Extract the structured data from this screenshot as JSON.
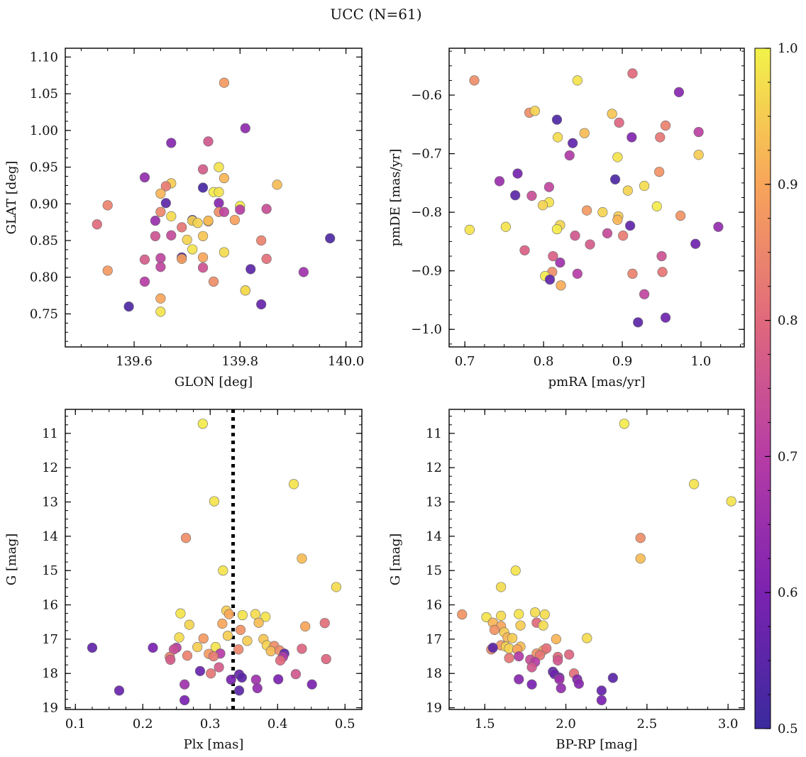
{
  "figure_title": "UCC (N=61)",
  "colorbar": {
    "range": [
      0.5,
      1.0
    ],
    "ticks": [
      0.5,
      0.6,
      0.7,
      0.8,
      0.9,
      1.0
    ],
    "tick_labels": [
      "0.5",
      "0.6",
      "0.7",
      "0.8",
      "0.9",
      "1.0"
    ],
    "colormap": "plasma",
    "stops": [
      "#3a2a9e",
      "#7b22b0",
      "#b63ca6",
      "#e0697c",
      "#f8a55a",
      "#f2f24a"
    ]
  },
  "chart_data": [
    {
      "type": "scatter",
      "title": "",
      "xlabel": "GLON [deg]",
      "ylabel": "GLAT [deg]",
      "xlim": [
        139.47,
        140.03
      ],
      "ylim": [
        0.705,
        1.112
      ],
      "xticks": [
        139.6,
        139.8,
        140.0
      ],
      "xtick_labels": [
        "139.6",
        "139.8",
        "140.0"
      ],
      "yticks": [
        0.75,
        0.8,
        0.85,
        0.9,
        0.95,
        1.0,
        1.05,
        1.1
      ],
      "ytick_labels": [
        "0.75",
        "0.80",
        "0.85",
        "0.90",
        "0.95",
        "1.00",
        "1.05",
        "1.10"
      ],
      "points": [
        [
          139.77,
          1.065,
          0.88
        ],
        [
          139.81,
          1.003,
          0.63
        ],
        [
          139.67,
          0.983,
          0.62
        ],
        [
          139.74,
          0.985,
          0.76
        ],
        [
          139.62,
          0.936,
          0.64
        ],
        [
          139.73,
          0.947,
          0.77
        ],
        [
          139.76,
          0.95,
          0.98
        ],
        [
          139.77,
          0.935,
          0.92
        ],
        [
          139.67,
          0.928,
          0.95
        ],
        [
          139.66,
          0.924,
          0.83
        ],
        [
          139.65,
          0.914,
          0.92
        ],
        [
          139.73,
          0.922,
          0.52
        ],
        [
          139.75,
          0.916,
          0.99
        ],
        [
          139.76,
          0.916,
          0.98
        ],
        [
          139.87,
          0.926,
          0.93
        ],
        [
          139.66,
          0.901,
          0.55
        ],
        [
          139.76,
          0.901,
          0.62
        ],
        [
          139.8,
          0.897,
          0.99
        ],
        [
          139.55,
          0.898,
          0.84
        ],
        [
          139.8,
          0.892,
          0.7
        ],
        [
          139.65,
          0.889,
          0.85
        ],
        [
          139.76,
          0.889,
          0.86
        ],
        [
          139.67,
          0.883,
          0.97
        ],
        [
          139.77,
          0.889,
          0.72
        ],
        [
          139.85,
          0.893,
          0.74
        ],
        [
          139.79,
          0.878,
          0.89
        ],
        [
          139.71,
          0.878,
          0.57
        ],
        [
          139.71,
          0.877,
          0.96
        ],
        [
          139.74,
          0.876,
          0.9
        ],
        [
          139.72,
          0.874,
          0.96
        ],
        [
          139.74,
          0.877,
          0.93
        ],
        [
          139.64,
          0.877,
          0.65
        ],
        [
          139.53,
          0.872,
          0.8
        ],
        [
          139.69,
          0.868,
          0.82
        ],
        [
          139.64,
          0.856,
          0.75
        ],
        [
          139.67,
          0.857,
          0.73
        ],
        [
          139.73,
          0.856,
          0.94
        ],
        [
          139.7,
          0.851,
          0.96
        ],
        [
          139.84,
          0.85,
          0.84
        ],
        [
          139.97,
          0.853,
          0.53
        ],
        [
          139.71,
          0.838,
          0.98
        ],
        [
          139.77,
          0.834,
          0.97
        ],
        [
          139.65,
          0.826,
          0.72
        ],
        [
          139.69,
          0.827,
          0.54
        ],
        [
          139.73,
          0.827,
          0.9
        ],
        [
          139.69,
          0.825,
          0.89
        ],
        [
          139.62,
          0.824,
          0.77
        ],
        [
          139.85,
          0.825,
          0.81
        ],
        [
          139.65,
          0.814,
          0.72
        ],
        [
          139.73,
          0.813,
          0.75
        ],
        [
          139.82,
          0.811,
          0.55
        ],
        [
          139.55,
          0.809,
          0.88
        ],
        [
          139.92,
          0.807,
          0.66
        ],
        [
          139.62,
          0.794,
          0.7
        ],
        [
          139.75,
          0.794,
          0.86
        ],
        [
          139.81,
          0.782,
          0.92
        ],
        [
          139.81,
          0.782,
          0.97
        ],
        [
          139.65,
          0.771,
          0.9
        ],
        [
          139.84,
          0.763,
          0.57
        ],
        [
          139.59,
          0.76,
          0.53
        ],
        [
          139.65,
          0.753,
          0.98
        ]
      ]
    },
    {
      "type": "scatter",
      "title": "",
      "xlabel": "pmRA [mas/yr]",
      "ylabel": "pmDE [mas/yr]",
      "xlim": [
        0.68,
        1.055
      ],
      "ylim": [
        -1.03,
        -0.52
      ],
      "xticks": [
        0.7,
        0.8,
        0.9,
        1.0
      ],
      "xtick_labels": [
        "0.7",
        "0.8",
        "0.9",
        "1.0"
      ],
      "yticks": [
        -1.0,
        -0.9,
        -0.8,
        -0.7,
        -0.6
      ],
      "ytick_labels": [
        "−1.0",
        "−0.9",
        "−0.8",
        "−0.7",
        "−0.6"
      ],
      "points": [
        [
          0.712,
          -0.575,
          0.86
        ],
        [
          0.843,
          -0.575,
          0.98
        ],
        [
          0.913,
          -0.563,
          0.8
        ],
        [
          0.972,
          -0.595,
          0.62
        ],
        [
          0.782,
          -0.63,
          0.86
        ],
        [
          0.789,
          -0.627,
          0.96
        ],
        [
          0.887,
          -0.632,
          0.94
        ],
        [
          0.817,
          -0.642,
          0.53
        ],
        [
          0.896,
          -0.647,
          0.79
        ],
        [
          0.955,
          -0.652,
          0.84
        ],
        [
          0.818,
          -0.672,
          0.97
        ],
        [
          0.852,
          -0.665,
          0.93
        ],
        [
          0.912,
          -0.672,
          0.61
        ],
        [
          0.948,
          -0.672,
          0.82
        ],
        [
          0.997,
          -0.663,
          0.71
        ],
        [
          0.837,
          -0.682,
          0.56
        ],
        [
          0.833,
          -0.703,
          0.69
        ],
        [
          0.894,
          -0.706,
          0.98
        ],
        [
          0.997,
          -0.702,
          0.95
        ],
        [
          0.767,
          -0.734,
          0.59
        ],
        [
          0.947,
          -0.731,
          0.87
        ],
        [
          0.744,
          -0.747,
          0.65
        ],
        [
          0.891,
          -0.744,
          0.53
        ],
        [
          0.928,
          -0.755,
          0.97
        ],
        [
          0.807,
          -0.757,
          0.72
        ],
        [
          0.907,
          -0.763,
          0.96
        ],
        [
          0.764,
          -0.771,
          0.55
        ],
        [
          0.785,
          -0.772,
          0.74
        ],
        [
          0.807,
          -0.783,
          0.98
        ],
        [
          0.799,
          -0.788,
          0.96
        ],
        [
          0.944,
          -0.79,
          0.99
        ],
        [
          0.855,
          -0.797,
          0.88
        ],
        [
          0.875,
          -0.8,
          0.96
        ],
        [
          0.895,
          -0.807,
          0.95
        ],
        [
          0.974,
          -0.806,
          0.87
        ],
        [
          0.894,
          -0.813,
          0.92
        ],
        [
          0.821,
          -0.822,
          0.96
        ],
        [
          0.91,
          -0.823,
          0.56
        ],
        [
          0.817,
          -0.829,
          0.99
        ],
        [
          0.752,
          -0.825,
          0.98
        ],
        [
          1.022,
          -0.825,
          0.64
        ],
        [
          0.706,
          -0.83,
          0.98
        ],
        [
          0.84,
          -0.84,
          0.76
        ],
        [
          0.881,
          -0.836,
          0.73
        ],
        [
          0.901,
          -0.84,
          0.83
        ],
        [
          0.859,
          -0.855,
          0.77
        ],
        [
          0.993,
          -0.854,
          0.58
        ],
        [
          0.776,
          -0.865,
          0.78
        ],
        [
          0.812,
          -0.875,
          0.78
        ],
        [
          0.821,
          -0.886,
          0.66
        ],
        [
          0.95,
          -0.875,
          0.75
        ],
        [
          0.811,
          -0.902,
          0.86
        ],
        [
          0.951,
          -0.902,
          0.82
        ],
        [
          0.913,
          -0.905,
          0.84
        ],
        [
          0.843,
          -0.905,
          0.7
        ],
        [
          0.802,
          -0.909,
          0.99
        ],
        [
          0.808,
          -0.915,
          0.56
        ],
        [
          0.822,
          -0.925,
          0.91
        ],
        [
          0.928,
          -0.94,
          0.72
        ],
        [
          0.955,
          -0.98,
          0.58
        ],
        [
          0.92,
          -0.988,
          0.55
        ]
      ]
    },
    {
      "type": "scatter",
      "title": "",
      "xlabel": "Plx [mas]",
      "ylabel": "G [mag]",
      "xlim": [
        0.085,
        0.525
      ],
      "ylim": [
        19.05,
        10.3
      ],
      "xticks": [
        0.1,
        0.2,
        0.3,
        0.4,
        0.5
      ],
      "xtick_labels": [
        "0.1",
        "0.2",
        "0.3",
        "0.4",
        "0.5"
      ],
      "yticks": [
        11,
        12,
        13,
        14,
        15,
        16,
        17,
        18,
        19
      ],
      "ytick_labels": [
        "11",
        "12",
        "13",
        "14",
        "15",
        "16",
        "17",
        "18",
        "19"
      ],
      "vline": 0.334,
      "points": [
        [
          0.289,
          10.72,
          0.99
        ],
        [
          0.424,
          12.48,
          0.98
        ],
        [
          0.306,
          12.98,
          0.98
        ],
        [
          0.264,
          14.05,
          0.86
        ],
        [
          0.436,
          14.65,
          0.93
        ],
        [
          0.319,
          15.0,
          0.98
        ],
        [
          0.487,
          15.48,
          0.97
        ],
        [
          0.256,
          16.25,
          0.98
        ],
        [
          0.324,
          16.17,
          0.95
        ],
        [
          0.328,
          16.27,
          0.9
        ],
        [
          0.348,
          16.3,
          0.98
        ],
        [
          0.367,
          16.27,
          0.97
        ],
        [
          0.382,
          16.35,
          0.98
        ],
        [
          0.47,
          16.53,
          0.81
        ],
        [
          0.372,
          16.52,
          0.93
        ],
        [
          0.269,
          16.58,
          0.96
        ],
        [
          0.318,
          16.55,
          0.9
        ],
        [
          0.441,
          16.63,
          0.9
        ],
        [
          0.345,
          16.73,
          0.87
        ],
        [
          0.326,
          16.9,
          0.95
        ],
        [
          0.379,
          17.0,
          0.94
        ],
        [
          0.254,
          16.95,
          0.97
        ],
        [
          0.29,
          16.98,
          0.88
        ],
        [
          0.355,
          17.05,
          0.95
        ],
        [
          0.384,
          17.18,
          0.96
        ],
        [
          0.395,
          17.2,
          0.86
        ],
        [
          0.308,
          17.23,
          0.98
        ],
        [
          0.281,
          17.23,
          0.95
        ],
        [
          0.215,
          17.25,
          0.6
        ],
        [
          0.125,
          17.25,
          0.56
        ],
        [
          0.25,
          17.25,
          0.7
        ],
        [
          0.246,
          17.3,
          0.74
        ],
        [
          0.342,
          17.3,
          0.85
        ],
        [
          0.39,
          17.35,
          0.93
        ],
        [
          0.403,
          17.33,
          0.86
        ],
        [
          0.436,
          17.28,
          0.79
        ],
        [
          0.298,
          17.43,
          0.88
        ],
        [
          0.315,
          17.42,
          0.7
        ],
        [
          0.305,
          17.5,
          0.83
        ],
        [
          0.266,
          17.48,
          0.84
        ],
        [
          0.24,
          17.52,
          0.84
        ],
        [
          0.41,
          17.42,
          0.56
        ],
        [
          0.408,
          17.52,
          0.7
        ],
        [
          0.241,
          17.6,
          0.77
        ],
        [
          0.404,
          17.62,
          0.8
        ],
        [
          0.472,
          17.58,
          0.79
        ],
        [
          0.313,
          17.82,
          0.77
        ],
        [
          0.285,
          17.93,
          0.57
        ],
        [
          0.301,
          18.0,
          0.82
        ],
        [
          0.427,
          18.02,
          0.76
        ],
        [
          0.343,
          18.03,
          0.57
        ],
        [
          0.331,
          18.18,
          0.6
        ],
        [
          0.347,
          18.12,
          0.55
        ],
        [
          0.368,
          18.18,
          0.66
        ],
        [
          0.401,
          18.17,
          0.6
        ],
        [
          0.262,
          18.32,
          0.66
        ],
        [
          0.451,
          18.32,
          0.6
        ],
        [
          0.37,
          18.43,
          0.64
        ],
        [
          0.165,
          18.5,
          0.57
        ],
        [
          0.262,
          18.78,
          0.6
        ],
        [
          0.343,
          18.5,
          0.55
        ]
      ]
    },
    {
      "type": "scatter",
      "title": "",
      "xlabel": "BP-RP [mag]",
      "ylabel": "G [mag]",
      "xlim": [
        1.28,
        3.1
      ],
      "ylim": [
        19.05,
        10.3
      ],
      "xticks": [
        1.5,
        2.0,
        2.5,
        3.0
      ],
      "xtick_labels": [
        "1.5",
        "2.0",
        "2.5",
        "3.0"
      ],
      "yticks": [
        11,
        12,
        13,
        14,
        15,
        16,
        17,
        18,
        19
      ],
      "ytick_labels": [
        "11",
        "12",
        "13",
        "14",
        "15",
        "16",
        "17",
        "18",
        "19"
      ],
      "points": [
        [
          2.36,
          10.72,
          0.99
        ],
        [
          2.79,
          12.48,
          0.98
        ],
        [
          3.02,
          12.98,
          0.98
        ],
        [
          2.46,
          14.05,
          0.86
        ],
        [
          2.46,
          14.65,
          0.93
        ],
        [
          1.69,
          15.0,
          0.98
        ],
        [
          1.6,
          15.48,
          0.97
        ],
        [
          1.36,
          16.28,
          0.87
        ],
        [
          1.51,
          16.36,
          0.98
        ],
        [
          1.6,
          16.32,
          0.97
        ],
        [
          1.71,
          16.27,
          0.98
        ],
        [
          1.81,
          16.22,
          0.97
        ],
        [
          1.87,
          16.28,
          0.97
        ],
        [
          1.55,
          16.52,
          0.92
        ],
        [
          1.6,
          16.62,
          0.9
        ],
        [
          1.72,
          16.6,
          0.95
        ],
        [
          1.82,
          16.52,
          0.8
        ],
        [
          1.86,
          16.6,
          0.97
        ],
        [
          1.56,
          16.73,
          0.87
        ],
        [
          1.62,
          16.8,
          0.95
        ],
        [
          1.64,
          16.95,
          0.92
        ],
        [
          1.67,
          16.97,
          0.95
        ],
        [
          1.94,
          17.0,
          0.92
        ],
        [
          2.13,
          16.97,
          0.97
        ],
        [
          1.6,
          17.18,
          0.88
        ],
        [
          1.63,
          17.22,
          0.96
        ],
        [
          1.65,
          17.27,
          0.96
        ],
        [
          1.72,
          17.22,
          0.93
        ],
        [
          1.54,
          17.3,
          0.85
        ],
        [
          1.55,
          17.25,
          0.55
        ],
        [
          1.7,
          17.3,
          0.9
        ],
        [
          1.86,
          17.33,
          0.9
        ],
        [
          1.88,
          17.27,
          0.81
        ],
        [
          1.82,
          17.42,
          0.87
        ],
        [
          1.84,
          17.47,
          0.82
        ],
        [
          1.71,
          17.5,
          0.69
        ],
        [
          1.95,
          17.52,
          0.8
        ],
        [
          2.02,
          17.45,
          0.79
        ],
        [
          1.65,
          17.55,
          0.82
        ],
        [
          1.78,
          17.6,
          0.74
        ],
        [
          1.81,
          17.67,
          0.7
        ],
        [
          1.95,
          17.62,
          0.76
        ],
        [
          1.79,
          17.82,
          0.76
        ],
        [
          1.92,
          17.95,
          0.56
        ],
        [
          1.93,
          18.02,
          0.58
        ],
        [
          2.05,
          18.0,
          0.81
        ],
        [
          1.96,
          18.12,
          0.57
        ],
        [
          1.71,
          18.17,
          0.62
        ],
        [
          1.96,
          18.17,
          0.66
        ],
        [
          2.07,
          18.17,
          0.62
        ],
        [
          2.29,
          18.13,
          0.55
        ],
        [
          2.08,
          18.3,
          0.62
        ],
        [
          1.79,
          18.32,
          0.6
        ],
        [
          1.97,
          18.43,
          0.64
        ],
        [
          2.22,
          18.5,
          0.57
        ],
        [
          2.22,
          18.78,
          0.6
        ]
      ]
    }
  ]
}
